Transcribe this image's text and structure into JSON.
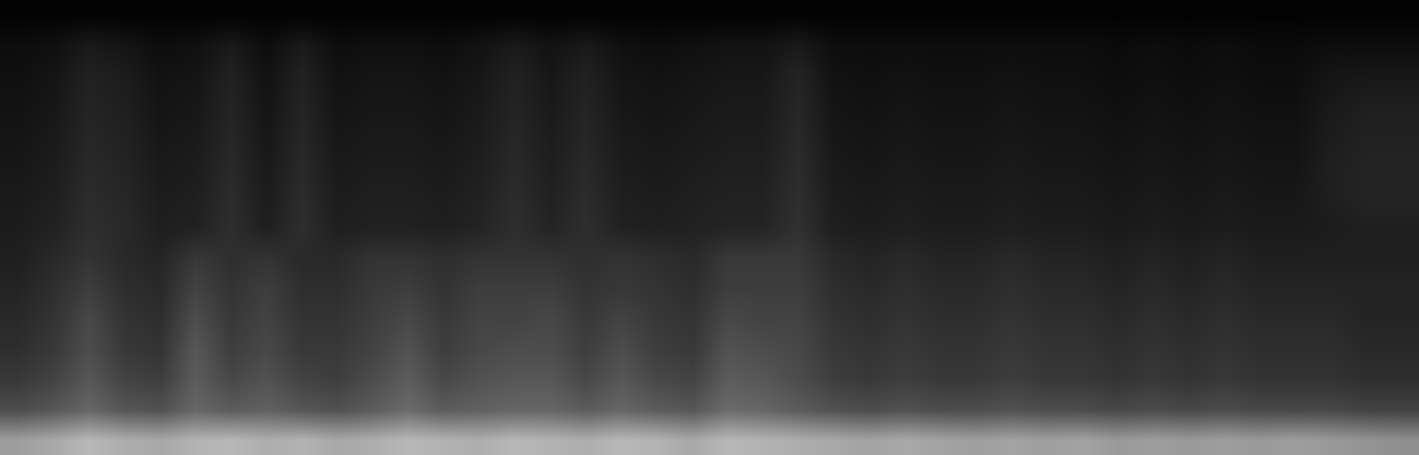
{
  "chart_data": {
    "type": "heatmap",
    "color": "gray",
    "tick_labels": false,
    "zlim": [
      0,
      100
    ],
    "z": [
      [
        62,
        66,
        72,
        68,
        66,
        70,
        72,
        68,
        70,
        66,
        68,
        72,
        70,
        68,
        72,
        70,
        68,
        72,
        70,
        66,
        72,
        70,
        68,
        66,
        64,
        66,
        64,
        62,
        64,
        62,
        64,
        60,
        62,
        60,
        62,
        60,
        62,
        60,
        58,
        56
      ],
      [
        30,
        34,
        40,
        34,
        32,
        40,
        36,
        38,
        34,
        32,
        36,
        42,
        36,
        38,
        40,
        40,
        36,
        40,
        36,
        34,
        42,
        40,
        36,
        32,
        30,
        32,
        30,
        30,
        32,
        30,
        30,
        28,
        30,
        28,
        30,
        28,
        28,
        28,
        26,
        26
      ],
      [
        22,
        26,
        34,
        26,
        24,
        36,
        28,
        32,
        26,
        24,
        30,
        36,
        28,
        32,
        34,
        34,
        28,
        34,
        28,
        26,
        36,
        34,
        30,
        24,
        22,
        24,
        22,
        22,
        24,
        22,
        22,
        20,
        22,
        20,
        22,
        20,
        20,
        20,
        18,
        18
      ],
      [
        18,
        22,
        30,
        22,
        20,
        34,
        24,
        28,
        22,
        22,
        26,
        32,
        24,
        28,
        30,
        30,
        24,
        30,
        24,
        22,
        32,
        30,
        28,
        22,
        20,
        22,
        20,
        20,
        22,
        20,
        20,
        18,
        20,
        18,
        20,
        18,
        18,
        18,
        16,
        16
      ],
      [
        16,
        20,
        28,
        20,
        18,
        30,
        22,
        26,
        20,
        20,
        24,
        28,
        22,
        26,
        26,
        28,
        22,
        26,
        22,
        20,
        28,
        26,
        26,
        20,
        18,
        20,
        18,
        18,
        20,
        18,
        18,
        16,
        18,
        16,
        18,
        16,
        16,
        16,
        14,
        14
      ],
      [
        14,
        18,
        24,
        18,
        16,
        26,
        20,
        24,
        18,
        18,
        22,
        24,
        20,
        24,
        24,
        24,
        20,
        22,
        20,
        18,
        24,
        24,
        24,
        18,
        16,
        18,
        16,
        16,
        18,
        16,
        16,
        14,
        16,
        14,
        16,
        14,
        14,
        14,
        14,
        14
      ],
      [
        12,
        16,
        20,
        16,
        14,
        22,
        18,
        20,
        16,
        16,
        20,
        20,
        18,
        20,
        20,
        20,
        18,
        20,
        18,
        16,
        22,
        22,
        22,
        16,
        14,
        16,
        14,
        14,
        16,
        14,
        14,
        12,
        14,
        12,
        14,
        12,
        12,
        12,
        12,
        12
      ],
      [
        11,
        13,
        18,
        16,
        12,
        13,
        18,
        12,
        18,
        12,
        13,
        13,
        12,
        14,
        18,
        14,
        18,
        13,
        12,
        13,
        14,
        14,
        19,
        12,
        11,
        12,
        11,
        11,
        12,
        11,
        11,
        10,
        11,
        10,
        11,
        10,
        10,
        11,
        12,
        12
      ],
      [
        10,
        12,
        17,
        15,
        11,
        12,
        17,
        11,
        17,
        11,
        12,
        12,
        11,
        13,
        17,
        13,
        17,
        12,
        11,
        12,
        13,
        13,
        18,
        11,
        10,
        11,
        10,
        10,
        11,
        10,
        10,
        9,
        10,
        9,
        10,
        9,
        9,
        12,
        14,
        14
      ],
      [
        9,
        11,
        16,
        14,
        10,
        11,
        16,
        10,
        16,
        10,
        11,
        11,
        10,
        12,
        16,
        12,
        16,
        11,
        10,
        11,
        12,
        12,
        17,
        10,
        9,
        10,
        9,
        9,
        10,
        9,
        9,
        8,
        9,
        8,
        9,
        8,
        8,
        12,
        14,
        14
      ],
      [
        8,
        10,
        15,
        13,
        9,
        10,
        15,
        9,
        15,
        9,
        10,
        10,
        9,
        11,
        15,
        11,
        15,
        10,
        9,
        10,
        11,
        11,
        16,
        9,
        8,
        9,
        8,
        8,
        9,
        8,
        8,
        7,
        8,
        7,
        8,
        7,
        7,
        11,
        13,
        13
      ],
      [
        7,
        9,
        14,
        12,
        8,
        9,
        14,
        8,
        14,
        8,
        9,
        9,
        8,
        10,
        14,
        10,
        14,
        9,
        8,
        9,
        10,
        10,
        15,
        8,
        7,
        8,
        7,
        7,
        8,
        7,
        7,
        6,
        7,
        6,
        7,
        6,
        6,
        10,
        12,
        12
      ],
      [
        6,
        8,
        13,
        11,
        7,
        8,
        13,
        7,
        13,
        7,
        8,
        8,
        7,
        9,
        13,
        9,
        13,
        8,
        7,
        8,
        9,
        9,
        14,
        7,
        6,
        7,
        6,
        6,
        7,
        6,
        6,
        5,
        6,
        5,
        6,
        5,
        5,
        8,
        9,
        9
      ],
      [
        5,
        6,
        10,
        8,
        5,
        6,
        10,
        5,
        10,
        5,
        6,
        6,
        5,
        7,
        10,
        7,
        10,
        6,
        5,
        6,
        7,
        7,
        10,
        5,
        5,
        5,
        5,
        5,
        5,
        5,
        5,
        4,
        5,
        4,
        5,
        4,
        4,
        5,
        5,
        5
      ],
      [
        1,
        1,
        1,
        1,
        1,
        1,
        1,
        1,
        1,
        1,
        1,
        1,
        1,
        1,
        1,
        1,
        1,
        1,
        1,
        1,
        1,
        1,
        1,
        1,
        1,
        1,
        1,
        1,
        1,
        1,
        1,
        1,
        1,
        1,
        1,
        1,
        1,
        1,
        1,
        1
      ]
    ]
  }
}
